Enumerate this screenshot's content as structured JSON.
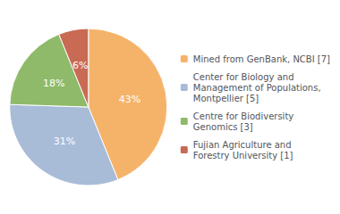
{
  "chart_data": {
    "type": "pie",
    "categories": [
      "Mined from GenBank, NCBI [7]",
      "Center for Biology and\nManagement of Populations,\nMontpellier [5]",
      "Centre for Biodiversity\nGenomics [3]",
      "Fujian Agriculture and\nForestry University [1]"
    ],
    "values": [
      43,
      31,
      18,
      6
    ],
    "value_labels": [
      "43%",
      "31%",
      "18%",
      "6%"
    ],
    "colors": [
      "#f5b36a",
      "#a8bcd8",
      "#8fba6a",
      "#c96a55"
    ],
    "data_labels": true,
    "legend": "right"
  }
}
